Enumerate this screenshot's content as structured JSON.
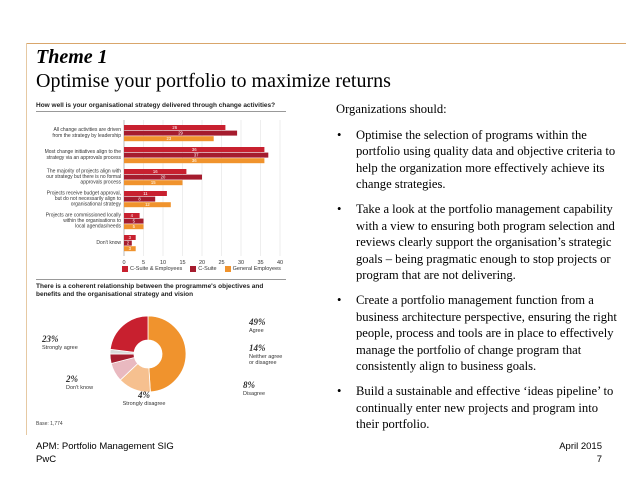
{
  "slide": {
    "title": "Theme 1",
    "subtitle": "Optimise your portfolio to maximize returns"
  },
  "bar_question": "How well is your organisational strategy delivered through change activities?",
  "pie_question": "There is a coherent relationship between the programme's objectives and benefits and the organisational strategy and vision",
  "base_note": "Base: 1,774",
  "colors": {
    "accent_rule": "#d9a66b",
    "c_suite_employees": "#c8202f",
    "c_suite": "#a51c2e",
    "general_employees": "#f0932d"
  },
  "chart_data": [
    {
      "type": "bar",
      "orientation": "horizontal",
      "title": "How well is your organisational strategy delivered through change activities?",
      "categories": [
        [
          "All change activities are driven",
          "from the strategy by leadership"
        ],
        [
          "Most change initiatives align to the",
          "strategy via an approvals process"
        ],
        [
          "The majority of projects align with",
          "our strategy but there is no formal",
          "approvals process"
        ],
        [
          "Projects receive budget approval,",
          "but do not necessarily align to",
          "organisational strategy"
        ],
        [
          "Projects are commissioned locally",
          "within the organisations to",
          "local agendas/needs"
        ],
        [
          "Don't know"
        ]
      ],
      "series": [
        {
          "name": "C-Suite & Employees",
          "color": "#c8202f",
          "values": [
            26,
            36,
            16,
            11,
            4,
            3
          ]
        },
        {
          "name": "C-Suite",
          "color": "#a51c2e",
          "values": [
            29,
            37,
            20,
            8,
            5,
            2
          ]
        },
        {
          "name": "General Employees",
          "color": "#f0932d",
          "values": [
            23,
            36,
            15,
            12,
            5,
            3
          ]
        }
      ],
      "data_labels": [
        [
          "26",
          "36",
          "16",
          "11",
          "4",
          "3"
        ],
        [
          "29",
          "37",
          "20",
          "8",
          "5",
          "2"
        ],
        [
          "23",
          "36",
          "15",
          "12",
          "5",
          "3"
        ]
      ],
      "xlim": [
        0,
        40
      ],
      "xticks": [
        "0",
        "5",
        "10",
        "15",
        "20",
        "25",
        "30",
        "35",
        "40"
      ],
      "legend": "bottom"
    },
    {
      "type": "pie",
      "style": "donut",
      "title": "There is a coherent relationship between the programme's objectives and benefits and the organisational strategy and vision",
      "slices": [
        {
          "pct": "49%",
          "value": 49,
          "label": "Agree",
          "color": "#f0932d"
        },
        {
          "pct": "14%",
          "value": 14,
          "label": "Neither agree or disagree",
          "label_lines": [
            "Neither agree",
            "or disagree"
          ],
          "color": "#f6c08f"
        },
        {
          "pct": "8%",
          "value": 8,
          "label": "Disagree",
          "color": "#e9b9c0"
        },
        {
          "pct": "4%",
          "value": 4,
          "label": "Strongly disagree",
          "color": "#a51c2e"
        },
        {
          "pct": "2%",
          "value": 2,
          "label": "Don't know",
          "color": "#d9d9d9"
        },
        {
          "pct": "23%",
          "value": 23,
          "label": "Strongly agree",
          "color": "#c8202f"
        }
      ]
    }
  ],
  "right_panel": {
    "intro": "Organizations should:",
    "bullet_glyph": "•",
    "bullets": [
      "Optimise the selection of programs within the portfolio using quality data and objective criteria to help the organization more effectively achieve its change strategies.",
      "Take a look at the portfolio management capability with a view to ensuring both program selection and reviews clearly support the organisation’s strategic goals – being pragmatic enough to stop projects or program that are not delivering.",
      "Create a portfolio management function from a business architecture perspective, ensuring the right people, process and tools are in place to effectively manage the portfolio of change program that consistently align to business goals.",
      "Build a sustainable and effective ‘ideas pipeline’ to continually enter new projects and program into their portfolio."
    ]
  },
  "footer": {
    "left_line1": "APM: Portfolio Management SIG",
    "left_line2": "PwC",
    "date": "April 2015",
    "page_number": "7"
  }
}
